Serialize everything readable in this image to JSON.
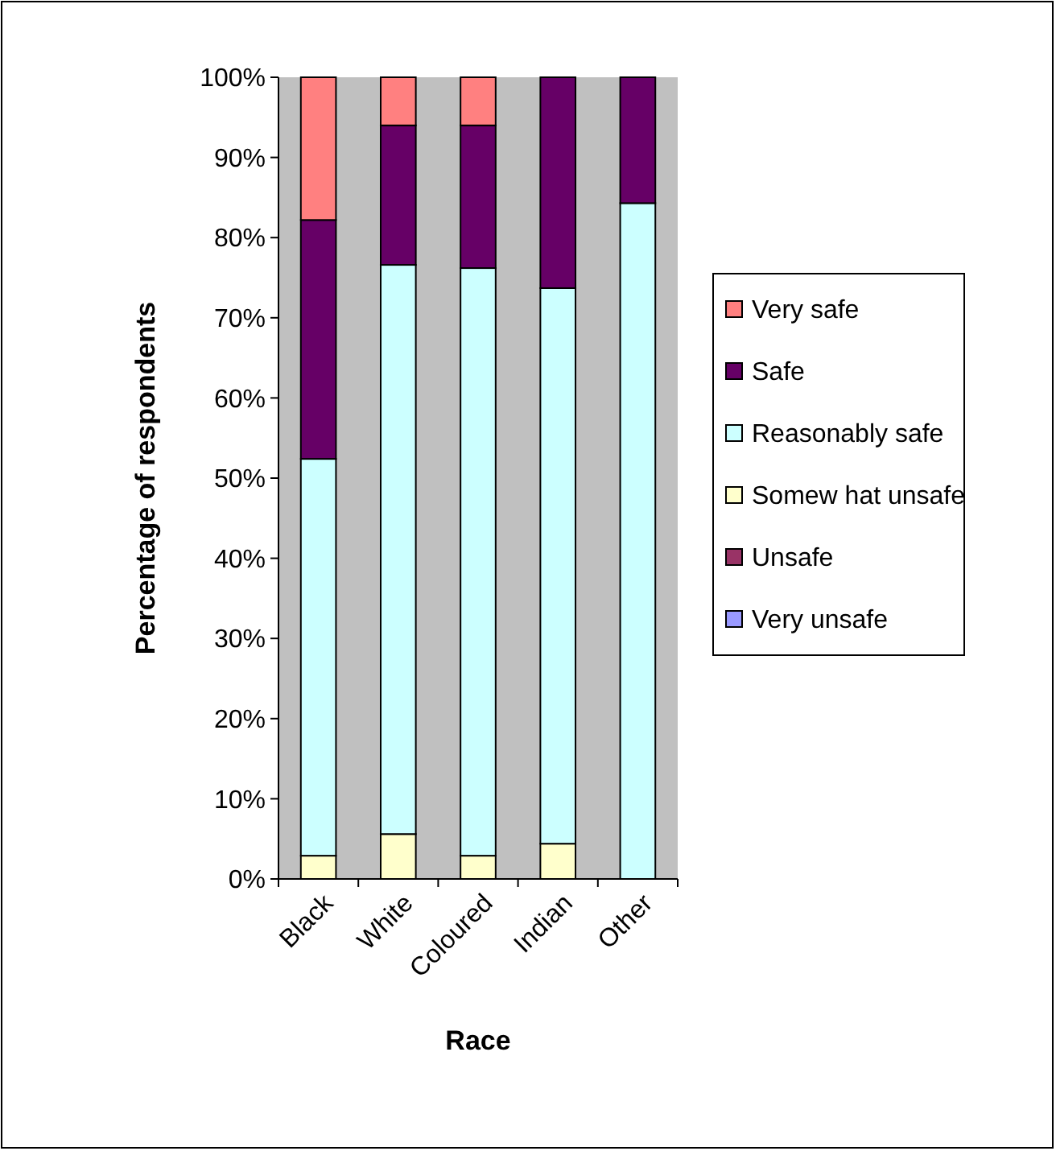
{
  "chart_data": {
    "type": "bar",
    "stacked": true,
    "xlabel": "Race",
    "ylabel": "Percentage of respondents",
    "categories": [
      "Black",
      "White",
      "Coloured",
      "Indian",
      "Other"
    ],
    "series": [
      {
        "name": "Very unsafe",
        "color": "#9999ff",
        "values": [
          0,
          0,
          0,
          0,
          0
        ]
      },
      {
        "name": "Unsafe",
        "color": "#993366",
        "values": [
          0,
          0,
          0,
          0,
          0
        ]
      },
      {
        "name": "Somew hat unsafe",
        "color": "#ffffcc",
        "values": [
          2.9,
          5.6,
          2.9,
          4.4,
          0
        ]
      },
      {
        "name": "Reasonably safe",
        "color": "#ccffff",
        "values": [
          49.5,
          71.0,
          73.3,
          69.3,
          84.3
        ]
      },
      {
        "name": "Safe",
        "color": "#660066",
        "values": [
          29.8,
          17.4,
          17.8,
          26.3,
          15.7
        ]
      },
      {
        "name": "Very safe",
        "color": "#ff8080",
        "values": [
          17.8,
          6.0,
          6.0,
          0,
          0
        ]
      }
    ],
    "ylim": [
      0,
      100
    ],
    "yticks": [
      {
        "value": 0,
        "label": "0%"
      },
      {
        "value": 10,
        "label": "10%"
      },
      {
        "value": 20,
        "label": "20%"
      },
      {
        "value": 30,
        "label": "30%"
      },
      {
        "value": 40,
        "label": "40%"
      },
      {
        "value": 50,
        "label": "50%"
      },
      {
        "value": 60,
        "label": "60%"
      },
      {
        "value": 70,
        "label": "70%"
      },
      {
        "value": 80,
        "label": "80%"
      },
      {
        "value": 90,
        "label": "90%"
      },
      {
        "value": 100,
        "label": "100%"
      }
    ],
    "legend": "right",
    "grid": false
  }
}
